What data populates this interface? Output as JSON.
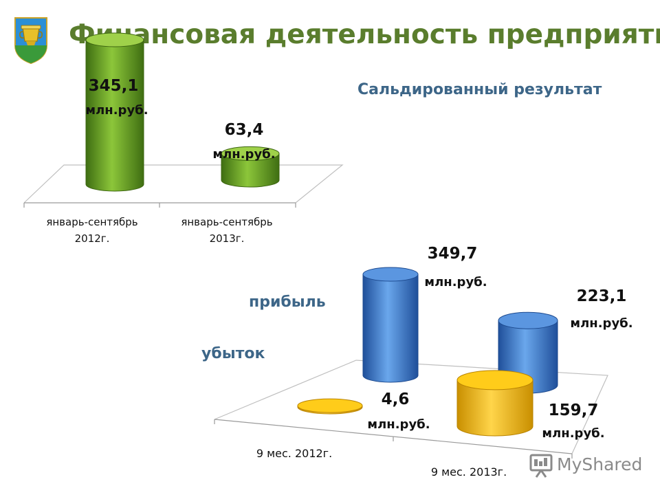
{
  "header": {
    "title": "Финансовая деятельность предприятий"
  },
  "colors": {
    "title": "#5a7d2d",
    "subtitle": "#3d6688",
    "balance_bar": "#6fa626",
    "profit_bar": "#3f7fcf",
    "loss_bar": "#f2b705"
  },
  "chart_data": [
    {
      "type": "bar",
      "style": "3d-cylinder",
      "title": "Сальдированный результат",
      "categories": [
        "январь-сентябрь 2012г.",
        "январь-сентябрь 2013г."
      ],
      "category_lines": [
        [
          "январь-сентябрь",
          "2012г."
        ],
        [
          "январь-сентябрь",
          "2013г."
        ]
      ],
      "values": [
        345.1,
        63.4
      ],
      "value_labels": [
        "345,1",
        "63,4"
      ],
      "unit": "млн.руб.",
      "grid": false
    },
    {
      "type": "bar",
      "style": "3d-cylinder",
      "categories": [
        "9 мес. 2012г.",
        "9 мес. 2013г."
      ],
      "series": [
        {
          "name": "прибыль",
          "values": [
            349.7,
            223.1
          ],
          "value_labels": [
            "349,7",
            "223,1"
          ],
          "color": "#3f7fcf"
        },
        {
          "name": "убыток",
          "values": [
            4.6,
            159.7
          ],
          "value_labels": [
            "4,6",
            "159,7"
          ],
          "color": "#f2b705"
        }
      ],
      "unit": "млн.руб.",
      "legend_position": "left",
      "grid": false
    }
  ],
  "watermark": {
    "text": "MyShared",
    "icon": "presentation-board-icon"
  }
}
